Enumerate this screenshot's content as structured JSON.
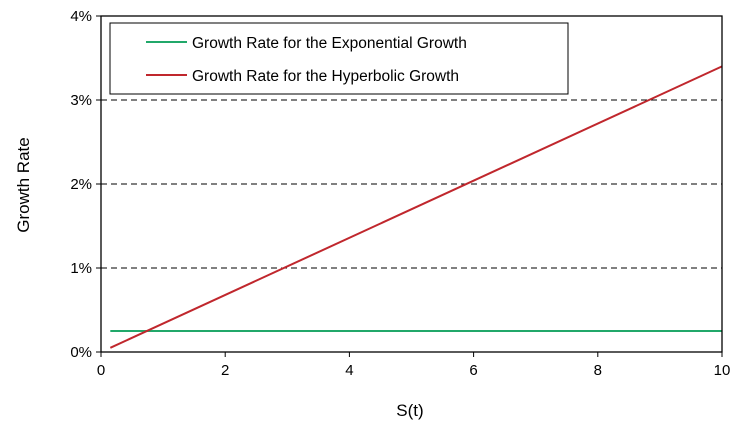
{
  "chart_data": {
    "type": "line",
    "xlabel": "S(t)",
    "ylabel": "Growth Rate",
    "xlim": [
      0,
      10
    ],
    "ylim": [
      0,
      0.04
    ],
    "x_ticks": [
      0,
      2,
      4,
      6,
      8,
      10
    ],
    "x_tick_labels": [
      "0",
      "2",
      "4",
      "6",
      "8",
      "10"
    ],
    "y_ticks": [
      0,
      0.01,
      0.02,
      0.03,
      0.04
    ],
    "y_tick_labels": [
      "0%",
      "1%",
      "2%",
      "3%",
      "4%"
    ],
    "grid": "horizontal dashed",
    "legend_position": "top-left",
    "series": [
      {
        "name": "Growth Rate for the Exponential Growth",
        "color": "#21a86a",
        "x": [
          0.15,
          10
        ],
        "y": [
          0.0025,
          0.0025
        ]
      },
      {
        "name": "Growth Rate for the Hyperbolic Growth",
        "color": "#c0272d",
        "x": [
          0.15,
          10
        ],
        "y": [
          0.0005,
          0.034
        ]
      }
    ]
  }
}
